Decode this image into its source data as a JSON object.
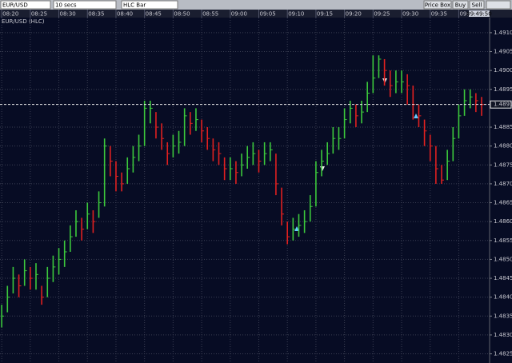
{
  "toolbar": {
    "symbol": "EUR/USD",
    "interval": "10 secs",
    "chart_style": "HLC Bar",
    "buttons": [
      "Price Box",
      "Buy",
      "Sell"
    ]
  },
  "chart_data": {
    "type": "hlc",
    "title": "EUR/USD (HLC)",
    "x": [
      500,
      501,
      502,
      503,
      504,
      505,
      506,
      507,
      508,
      509,
      510,
      511,
      512,
      513,
      514,
      515,
      516,
      517,
      518,
      519,
      520,
      521,
      522,
      523,
      524,
      525,
      526,
      527,
      528,
      529,
      530,
      531,
      532,
      533,
      534,
      535,
      536,
      537,
      538,
      539,
      540,
      541,
      542,
      543,
      544,
      545,
      546,
      547,
      548,
      549,
      550,
      551,
      552,
      553,
      554,
      555,
      556,
      557,
      558,
      559,
      560,
      561,
      562,
      563,
      564,
      565,
      566,
      567,
      568,
      569,
      570,
      571,
      572,
      573,
      574,
      575,
      576,
      577,
      578,
      579,
      580,
      581,
      582,
      583,
      584
    ],
    "high": [
      1.4838,
      1.4843,
      1.4848,
      1.4846,
      1.485,
      1.4848,
      1.4849,
      1.4843,
      1.4848,
      1.4851,
      1.4853,
      1.4855,
      1.4859,
      1.4863,
      1.4861,
      1.4865,
      1.4863,
      1.4868,
      1.4882,
      1.488,
      1.4876,
      1.4873,
      1.4877,
      1.488,
      1.4883,
      1.4892,
      1.4892,
      1.4889,
      1.4886,
      1.4881,
      1.4883,
      1.4884,
      1.489,
      1.4889,
      1.489,
      1.4887,
      1.4885,
      1.4882,
      1.4881,
      1.4877,
      1.4877,
      1.4876,
      1.4878,
      1.488,
      1.4881,
      1.4879,
      1.4881,
      1.4881,
      1.4878,
      1.4869,
      1.486,
      1.4861,
      1.4862,
      1.4863,
      1.4867,
      1.4876,
      1.4879,
      1.4881,
      1.4885,
      1.4885,
      1.489,
      1.4892,
      1.4891,
      1.4892,
      1.4897,
      1.4904,
      1.4904,
      1.4903,
      1.49,
      1.49,
      1.49,
      1.4899,
      1.4896,
      1.4891,
      1.4887,
      1.4883,
      1.488,
      1.4875,
      1.4879,
      1.4885,
      1.4891,
      1.4895,
      1.4895,
      1.4894,
      1.4893
    ],
    "low": [
      1.4832,
      1.4836,
      1.4841,
      1.484,
      1.4843,
      1.4842,
      1.4842,
      1.4838,
      1.484,
      1.4844,
      1.4846,
      1.4848,
      1.4852,
      1.4856,
      1.4855,
      1.4858,
      1.4857,
      1.4861,
      1.4864,
      1.4872,
      1.4868,
      1.4868,
      1.487,
      1.4873,
      1.4876,
      1.488,
      1.4886,
      1.4882,
      1.4879,
      1.4875,
      1.4877,
      1.4878,
      1.488,
      1.4883,
      1.4884,
      1.4881,
      1.4879,
      1.4876,
      1.4875,
      1.4871,
      1.4871,
      1.487,
      1.4872,
      1.4874,
      1.4875,
      1.4873,
      1.4875,
      1.4876,
      1.4867,
      1.4859,
      1.4854,
      1.4855,
      1.4856,
      1.4857,
      1.486,
      1.4864,
      1.4872,
      1.4875,
      1.4878,
      1.4879,
      1.4882,
      1.4886,
      1.4885,
      1.4886,
      1.4889,
      1.4894,
      1.4898,
      1.4896,
      1.4893,
      1.4894,
      1.4894,
      1.4891,
      1.4887,
      1.4885,
      1.488,
      1.4876,
      1.487,
      1.487,
      1.4871,
      1.4876,
      1.4882,
      1.4888,
      1.489,
      1.4889,
      1.4888
    ],
    "close": [
      1.4835,
      1.484,
      1.4845,
      1.4843,
      1.4847,
      1.4845,
      1.4846,
      1.484,
      1.4845,
      1.4848,
      1.485,
      1.4852,
      1.4856,
      1.486,
      1.4858,
      1.4862,
      1.486,
      1.4865,
      1.488,
      1.4876,
      1.4872,
      1.487,
      1.4874,
      1.4877,
      1.488,
      1.489,
      1.489,
      1.4885,
      1.4882,
      1.4878,
      1.488,
      1.4881,
      1.4888,
      1.4886,
      1.4887,
      1.4884,
      1.4882,
      1.4879,
      1.4878,
      1.4874,
      1.4874,
      1.4873,
      1.4875,
      1.4877,
      1.4878,
      1.4876,
      1.4878,
      1.4879,
      1.487,
      1.4862,
      1.4856,
      1.4858,
      1.4859,
      1.486,
      1.4864,
      1.4873,
      1.4876,
      1.4878,
      1.4882,
      1.4882,
      1.4887,
      1.489,
      1.4888,
      1.4889,
      1.4894,
      1.4898,
      1.4903,
      1.49,
      1.4896,
      1.4897,
      1.4897,
      1.4896,
      1.4891,
      1.4888,
      1.4884,
      1.488,
      1.4874,
      1.4871,
      1.4876,
      1.4882,
      1.4888,
      1.4892,
      1.4893,
      1.4892,
      1.4891
    ],
    "up_color": "#3cc83c",
    "down_color": "#e02020",
    "xlim": [
      499.7,
      585.4
    ],
    "xticks": [
      {
        "value": 500,
        "label": "08:20"
      },
      {
        "value": 505,
        "label": "08:25"
      },
      {
        "value": 510,
        "label": "08:30"
      },
      {
        "value": 515,
        "label": "08:35"
      },
      {
        "value": 520,
        "label": "08:40"
      },
      {
        "value": 525,
        "label": "08:45"
      },
      {
        "value": 530,
        "label": "08:50"
      },
      {
        "value": 535,
        "label": "08:55"
      },
      {
        "value": 540,
        "label": "09:00"
      },
      {
        "value": 545,
        "label": "09:05"
      },
      {
        "value": 550,
        "label": "09:10"
      },
      {
        "value": 555,
        "label": "09:15"
      },
      {
        "value": 560,
        "label": "09:20"
      },
      {
        "value": 565,
        "label": "09:25"
      },
      {
        "value": 570,
        "label": "09:30"
      },
      {
        "value": 575,
        "label": "09:35"
      },
      {
        "value": 580,
        "label": "09:40"
      }
    ],
    "ylim": [
      1.4823,
      1.4914
    ],
    "yticks": [
      {
        "value": 1.491,
        "label": "1.4910"
      },
      1.4905,
      {
        "value": 1.49,
        "label": "1.4900"
      },
      1.4895,
      1.4885,
      {
        "value": 1.488,
        "label": "1.4880"
      },
      1.4875,
      {
        "value": 1.487,
        "label": "1.4870"
      },
      1.4865,
      {
        "value": 1.486,
        "label": "1.4860"
      },
      1.4855,
      {
        "value": 1.485,
        "label": "1.4850"
      },
      1.4845,
      {
        "value": 1.484,
        "label": "1.4840"
      },
      1.4835,
      {
        "value": 1.483,
        "label": "1.4830"
      },
      1.4825
    ],
    "grid": true,
    "current_price": 1.4891,
    "current_time": "09:49:50"
  }
}
